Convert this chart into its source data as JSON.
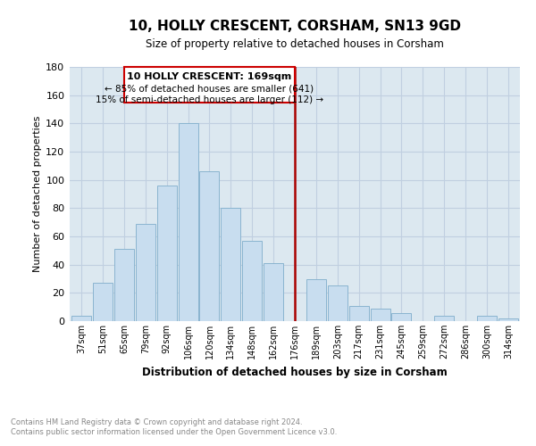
{
  "title": "10, HOLLY CRESCENT, CORSHAM, SN13 9GD",
  "subtitle": "Size of property relative to detached houses in Corsham",
  "xlabel": "Distribution of detached houses by size in Corsham",
  "ylabel": "Number of detached properties",
  "footnote1": "Contains HM Land Registry data © Crown copyright and database right 2024.",
  "footnote2": "Contains public sector information licensed under the Open Government Licence v3.0.",
  "bar_labels": [
    "37sqm",
    "51sqm",
    "65sqm",
    "79sqm",
    "92sqm",
    "106sqm",
    "120sqm",
    "134sqm",
    "148sqm",
    "162sqm",
    "176sqm",
    "189sqm",
    "203sqm",
    "217sqm",
    "231sqm",
    "245sqm",
    "259sqm",
    "272sqm",
    "286sqm",
    "300sqm",
    "314sqm"
  ],
  "bar_values": [
    4,
    27,
    51,
    69,
    96,
    140,
    106,
    80,
    57,
    41,
    0,
    30,
    25,
    11,
    9,
    6,
    0,
    4,
    0,
    4,
    2
  ],
  "bar_color": "#c8ddef",
  "bar_edge_color": "#8ab4d0",
  "property_label": "10 HOLLY CRESCENT: 169sqm",
  "annotation_line1": "← 85% of detached houses are smaller (641)",
  "annotation_line2": "15% of semi-detached houses are larger (112) →",
  "vline_color": "#aa0000",
  "annotation_box_color": "#ffffff",
  "annotation_box_edge": "#cc0000",
  "ylim": [
    0,
    180
  ],
  "yticks": [
    0,
    20,
    40,
    60,
    80,
    100,
    120,
    140,
    160,
    180
  ],
  "bg_axes": "#dce8f0",
  "grid_color": "#c0cfe0"
}
